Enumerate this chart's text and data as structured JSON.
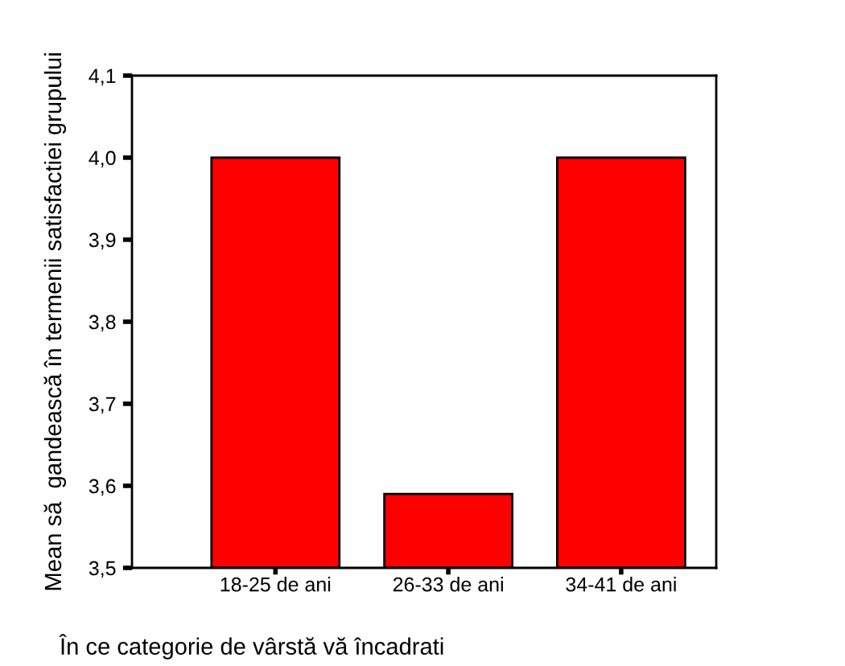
{
  "chart_data": {
    "type": "bar",
    "categories": [
      "18-25 de ani",
      "26-33 de ani",
      "34-41 de ani"
    ],
    "values": [
      4.0,
      3.59,
      4.0
    ],
    "color": "#ff0000",
    "xlabel": "În ce categorie de vârstă vă încadrati",
    "ylabel": "Mean să  gandească în termenii satisfactiei grupului",
    "ylim": [
      3.5,
      4.1
    ],
    "yticks": [
      {
        "value": 3.5,
        "label": "3,5"
      },
      {
        "value": 3.6,
        "label": "3,6"
      },
      {
        "value": 3.7,
        "label": "3,7"
      },
      {
        "value": 3.8,
        "label": "3,8"
      },
      {
        "value": 3.9,
        "label": "3,9"
      },
      {
        "value": 4.0,
        "label": "4,0"
      },
      {
        "value": 4.1,
        "label": "4,1"
      }
    ],
    "grid": false,
    "legend": false
  }
}
